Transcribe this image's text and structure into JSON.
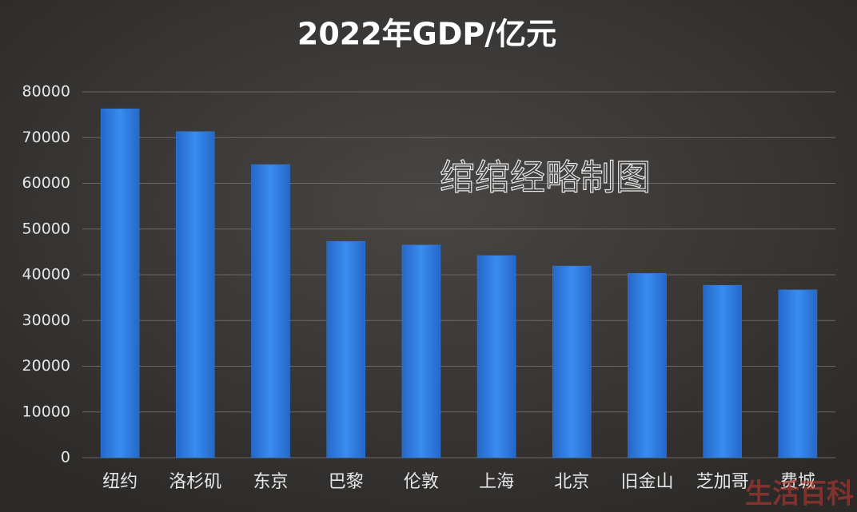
{
  "chart_data": {
    "type": "bar",
    "title": "2022年GDP/亿元",
    "categories": [
      "纽约",
      "洛杉矶",
      "东京",
      "巴黎",
      "伦敦",
      "上海",
      "北京",
      "旧金山",
      "芝加哥",
      "费城"
    ],
    "values": [
      76300,
      71300,
      64100,
      47300,
      46500,
      44200,
      41900,
      40300,
      37700,
      36700
    ],
    "color": "#2f7fe0",
    "ylim": [
      0,
      80000
    ],
    "yticks": [
      0,
      10000,
      20000,
      30000,
      40000,
      50000,
      60000,
      70000,
      80000
    ],
    "grid": true,
    "watermark": "绾绾经略制图",
    "corner_watermark": "生活百科"
  }
}
